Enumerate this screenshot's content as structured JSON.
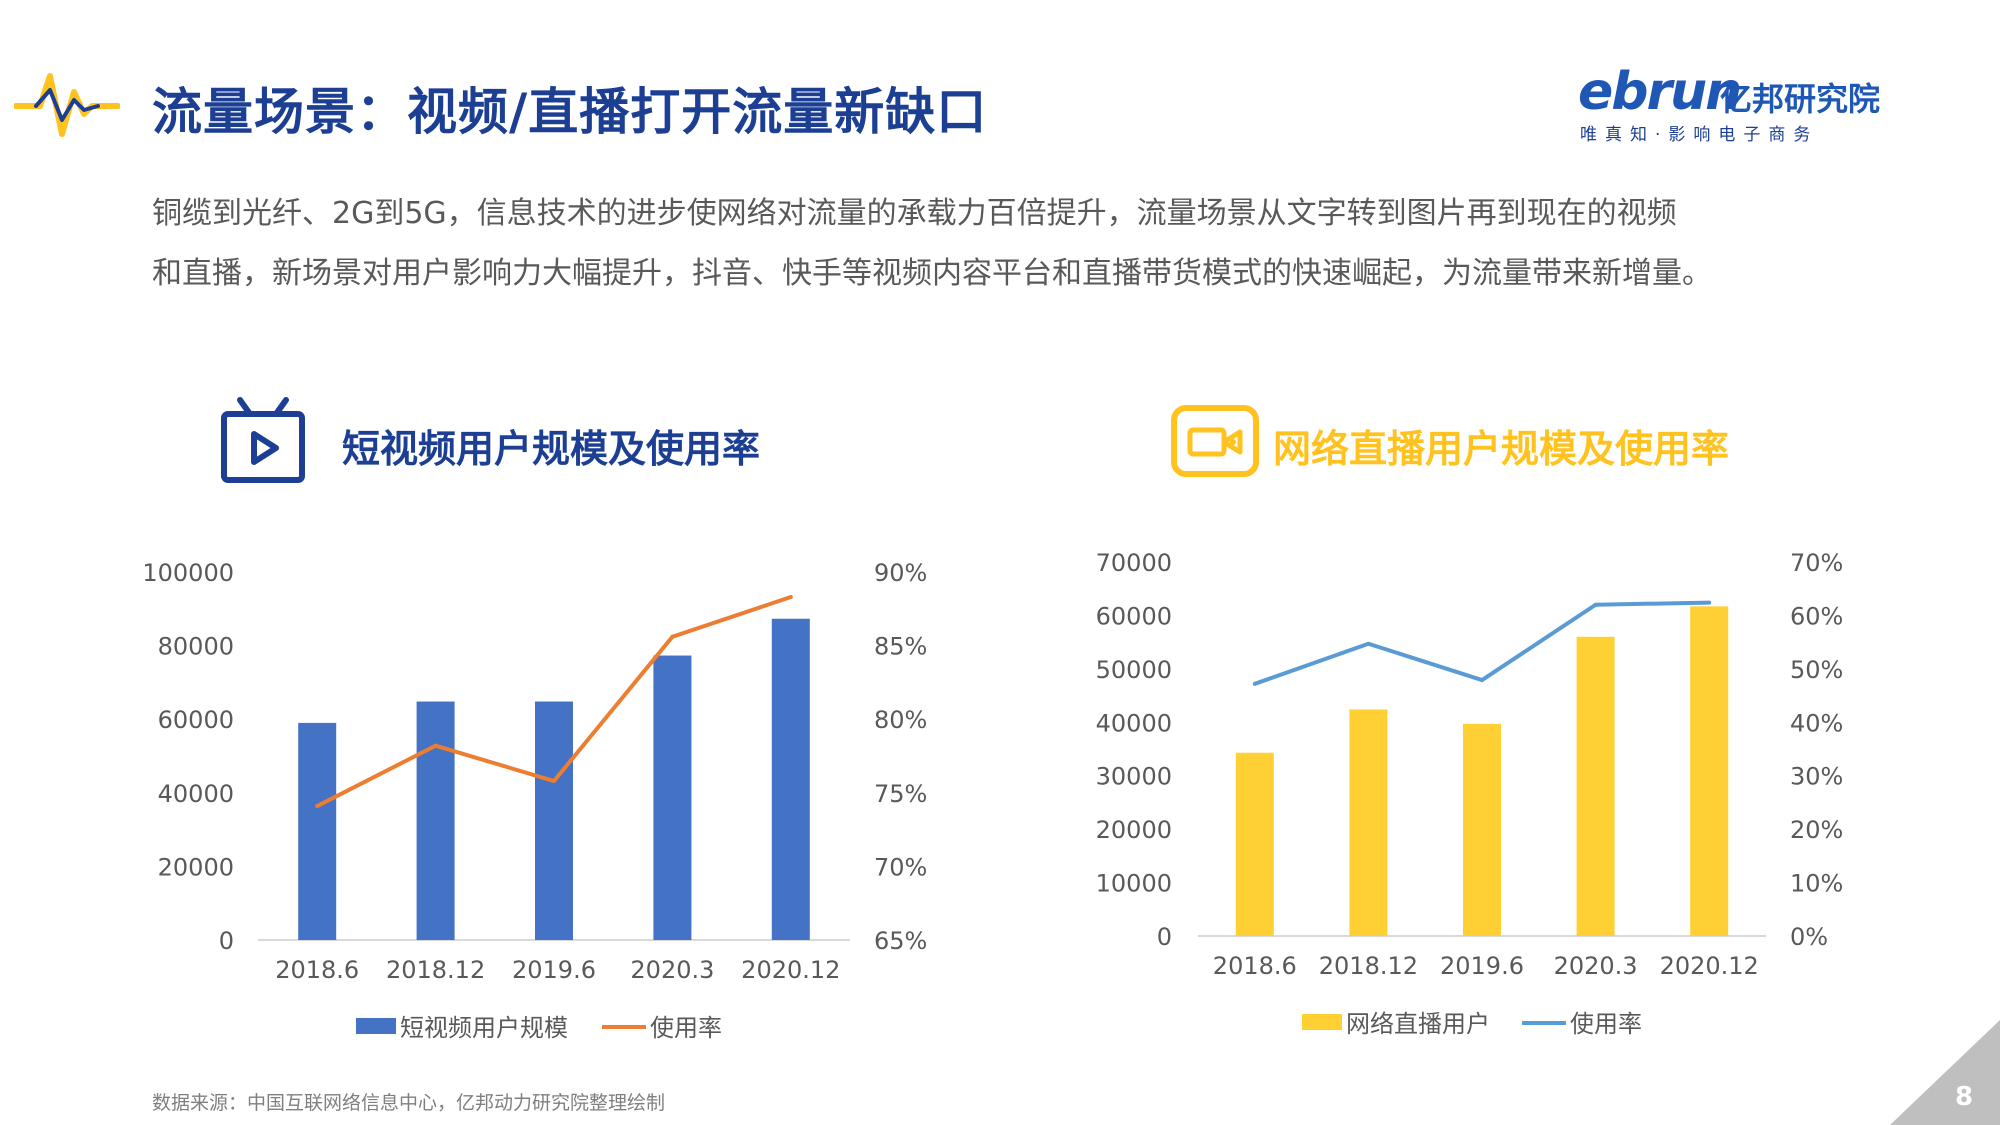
{
  "header": {
    "title": "流量场景：视频/直播打开流量新缺口",
    "logo": {
      "brand": "ebrun",
      "name_cn": "亿邦研究院",
      "tagline": "唯真知·影响电子商务"
    }
  },
  "intro": {
    "line1": "铜缆到光纤、2G到5G，信息技术的进步使网络对流量的承载力百倍提升，流量场景从文字转到图片再到现在的视频",
    "line2": "和直播，新场景对用户影响力大幅提升，抖音、快手等视频内容平台和直播带货模式的快速崛起，为流量带来新增量。"
  },
  "charts_titles": {
    "chart1": "短视频用户规模及使用率",
    "chart2": "网络直播用户规模及使用率"
  },
  "source": "数据来源：中国互联网络信息中心，亿邦动力研究院整理绘制",
  "page_number": "8",
  "colors": {
    "title_blue": "#1c3f94",
    "bar_blue": "#4472c4",
    "line_orange": "#ed7d31",
    "bar_yellow": "#ffd033",
    "line_blue": "#5b9bd5",
    "accent_yellow": "#ffc21f"
  },
  "icons": {
    "header": "pulse-icon",
    "chart1": "tv-play-icon",
    "chart2": "video-camera-icon"
  },
  "chart_data": [
    {
      "type": "bar",
      "title": "短视频用户规模及使用率",
      "categories": [
        "2018.6",
        "2018.12",
        "2019.6",
        "2020.3",
        "2020.12"
      ],
      "yticks": [
        "0",
        "20000",
        "40000",
        "60000",
        "80000",
        "100000"
      ],
      "y2ticks": [
        "65%",
        "70%",
        "75%",
        "80%",
        "85%",
        "90%"
      ],
      "ylim": [
        0,
        100000
      ],
      "y2lim": [
        65,
        90
      ],
      "series": [
        {
          "name": "短视频用户规模",
          "kind": "bar",
          "axis": "left",
          "color": "#4472c4",
          "values": [
            59000,
            64800,
            64800,
            77300,
            87300
          ]
        },
        {
          "name": "使用率",
          "kind": "line",
          "axis": "right",
          "color": "#ed7d31",
          "values": [
            74.1,
            78.2,
            75.8,
            85.6,
            88.3
          ]
        }
      ],
      "legend_position": "bottom",
      "grid": false
    },
    {
      "type": "bar",
      "title": "网络直播用户规模及使用率",
      "categories": [
        "2018.6",
        "2018.12",
        "2019.6",
        "2020.3",
        "2020.12"
      ],
      "yticks": [
        "0",
        "10000",
        "20000",
        "30000",
        "40000",
        "50000",
        "60000",
        "70000"
      ],
      "y2ticks": [
        "0%",
        "10%",
        "20%",
        "30%",
        "40%",
        "50%",
        "60%",
        "70%"
      ],
      "ylim": [
        0,
        70000
      ],
      "y2lim": [
        0,
        70
      ],
      "series": [
        {
          "name": "网络直播用户",
          "kind": "bar",
          "axis": "left",
          "color": "#ffd033",
          "values": [
            34300,
            42400,
            39700,
            56000,
            61700
          ]
        },
        {
          "name": "使用率",
          "kind": "line",
          "axis": "right",
          "color": "#5b9bd5",
          "values": [
            47.2,
            54.7,
            47.9,
            62.0,
            62.4
          ]
        }
      ],
      "legend_position": "bottom",
      "grid": false
    }
  ]
}
